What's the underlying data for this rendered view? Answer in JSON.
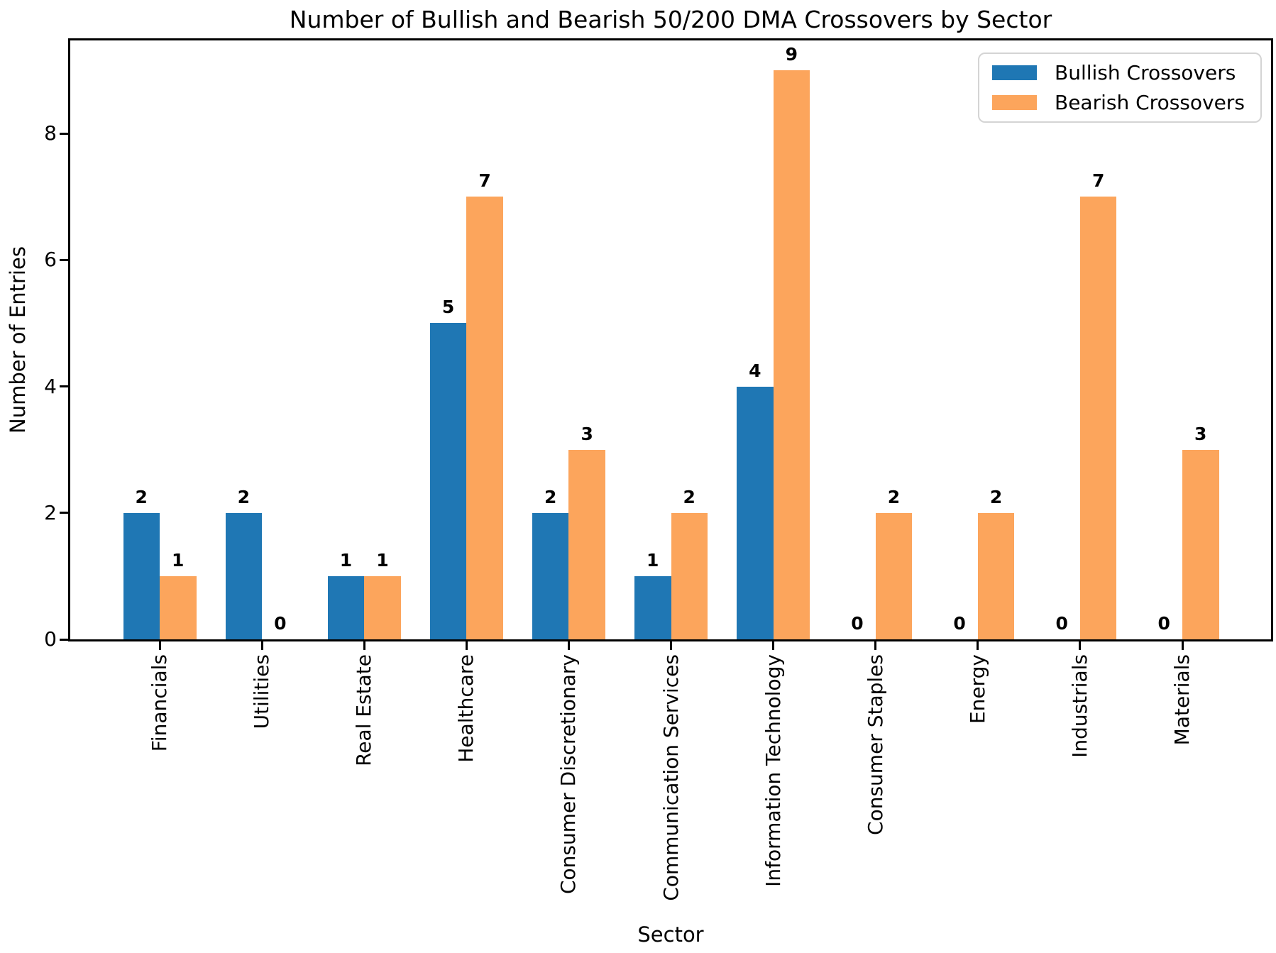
{
  "chart_data": {
    "type": "bar",
    "title": "Number of Bullish and Bearish 50/200 DMA Crossovers by Sector",
    "xlabel": "Sector",
    "ylabel": "Number of Entries",
    "categories": [
      "Financials",
      "Utilities",
      "Real Estate",
      "Healthcare",
      "Consumer Discretionary",
      "Communication Services",
      "Information Technology",
      "Consumer Staples",
      "Energy",
      "Industrials",
      "Materials"
    ],
    "series": [
      {
        "name": "Bullish Crossovers",
        "color": "#1f77b4",
        "values": [
          2,
          2,
          1,
          5,
          2,
          1,
          4,
          0,
          0,
          0,
          0
        ]
      },
      {
        "name": "Bearish Crossovers",
        "color": "#fca55c",
        "values": [
          1,
          0,
          1,
          7,
          3,
          2,
          9,
          2,
          2,
          7,
          3
        ]
      }
    ],
    "yticks": [
      0,
      2,
      4,
      6,
      8
    ],
    "ylim": [
      0,
      9.47
    ],
    "bar_value_labels": true,
    "grid": false,
    "legend_position": "upper right",
    "axis_color": "#000000",
    "legend_border_color": "#d4d4d4"
  }
}
